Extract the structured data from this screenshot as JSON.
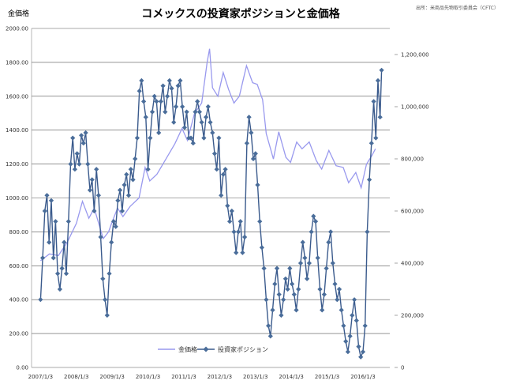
{
  "chart_data": {
    "type": "line",
    "title": "コメックスの投資家ポジションと金価格",
    "source_note": "出所：米商品先物取引委員会（CFTC）",
    "left_axis_label": "金価格",
    "left_axis": {
      "ylim": [
        0,
        2000
      ],
      "ticks": [
        "0.00",
        "200.00",
        "400.00",
        "600.00",
        "800.00",
        "1000.00",
        "1200.00",
        "1400.00",
        "1600.00",
        "1800.00",
        "2000.00"
      ]
    },
    "right_axis": {
      "ylim": [
        0,
        1300000
      ],
      "ticks": [
        "0",
        "200,000",
        "400,000",
        "600,000",
        "800,000",
        "1,000,000",
        "1,200,000"
      ]
    },
    "x_tick_labels": [
      "2007/1/3",
      "2008/1/3",
      "2009/1/3",
      "2010/1/3",
      "2011/1/3",
      "2012/1/3",
      "2013/1/3",
      "2014/1/3",
      "2015/1/3",
      "2016/1/3"
    ],
    "legend": {
      "gold_label": "金価格",
      "position_label": "投資家ポジション"
    },
    "colors": {
      "gold": "#9999ee",
      "position": "#3a5a8c",
      "marker": "#4a6d9a",
      "grid": "#555555"
    },
    "gold_series": {
      "name": "金価格",
      "axis": "left",
      "points": [
        [
          2007.0,
          630
        ],
        [
          2007.25,
          670
        ],
        [
          2007.5,
          660
        ],
        [
          2007.75,
          740
        ],
        [
          2008.0,
          850
        ],
        [
          2008.17,
          980
        ],
        [
          2008.35,
          880
        ],
        [
          2008.5,
          940
        ],
        [
          2008.75,
          760
        ],
        [
          2008.9,
          800
        ],
        [
          2009.0,
          860
        ],
        [
          2009.15,
          940
        ],
        [
          2009.3,
          890
        ],
        [
          2009.5,
          950
        ],
        [
          2009.75,
          1000
        ],
        [
          2009.92,
          1180
        ],
        [
          2010.05,
          1100
        ],
        [
          2010.25,
          1140
        ],
        [
          2010.5,
          1230
        ],
        [
          2010.75,
          1320
        ],
        [
          2010.95,
          1410
        ],
        [
          2011.1,
          1340
        ],
        [
          2011.3,
          1500
        ],
        [
          2011.5,
          1560
        ],
        [
          2011.65,
          1800
        ],
        [
          2011.72,
          1880
        ],
        [
          2011.8,
          1650
        ],
        [
          2011.95,
          1600
        ],
        [
          2012.1,
          1740
        ],
        [
          2012.25,
          1640
        ],
        [
          2012.4,
          1560
        ],
        [
          2012.55,
          1600
        ],
        [
          2012.75,
          1780
        ],
        [
          2012.92,
          1680
        ],
        [
          2013.05,
          1670
        ],
        [
          2013.2,
          1580
        ],
        [
          2013.3,
          1380
        ],
        [
          2013.5,
          1230
        ],
        [
          2013.65,
          1390
        ],
        [
          2013.85,
          1240
        ],
        [
          2013.98,
          1210
        ],
        [
          2014.15,
          1330
        ],
        [
          2014.3,
          1290
        ],
        [
          2014.5,
          1330
        ],
        [
          2014.7,
          1220
        ],
        [
          2014.85,
          1170
        ],
        [
          2015.05,
          1280
        ],
        [
          2015.25,
          1190
        ],
        [
          2015.45,
          1180
        ],
        [
          2015.6,
          1090
        ],
        [
          2015.8,
          1150
        ],
        [
          2015.95,
          1060
        ],
        [
          2016.1,
          1200
        ],
        [
          2016.25,
          1250
        ],
        [
          2016.35,
          1290
        ]
      ]
    },
    "position_series": {
      "name": "投資家ポジション",
      "axis": "right",
      "points": [
        [
          2007.0,
          260000
        ],
        [
          2007.06,
          420000
        ],
        [
          2007.12,
          600000
        ],
        [
          2007.18,
          660000
        ],
        [
          2007.24,
          480000
        ],
        [
          2007.3,
          640000
        ],
        [
          2007.36,
          420000
        ],
        [
          2007.42,
          560000
        ],
        [
          2007.48,
          360000
        ],
        [
          2007.54,
          300000
        ],
        [
          2007.6,
          380000
        ],
        [
          2007.66,
          480000
        ],
        [
          2007.72,
          360000
        ],
        [
          2007.78,
          560000
        ],
        [
          2007.84,
          780000
        ],
        [
          2007.9,
          880000
        ],
        [
          2007.96,
          760000
        ],
        [
          2008.02,
          820000
        ],
        [
          2008.08,
          780000
        ],
        [
          2008.14,
          890000
        ],
        [
          2008.2,
          860000
        ],
        [
          2008.26,
          900000
        ],
        [
          2008.32,
          780000
        ],
        [
          2008.38,
          680000
        ],
        [
          2008.44,
          720000
        ],
        [
          2008.5,
          600000
        ],
        [
          2008.56,
          760000
        ],
        [
          2008.62,
          660000
        ],
        [
          2008.68,
          500000
        ],
        [
          2008.74,
          340000
        ],
        [
          2008.8,
          260000
        ],
        [
          2008.86,
          200000
        ],
        [
          2008.92,
          360000
        ],
        [
          2008.98,
          480000
        ],
        [
          2009.04,
          560000
        ],
        [
          2009.1,
          540000
        ],
        [
          2009.16,
          640000
        ],
        [
          2009.22,
          680000
        ],
        [
          2009.28,
          600000
        ],
        [
          2009.34,
          700000
        ],
        [
          2009.4,
          740000
        ],
        [
          2009.46,
          660000
        ],
        [
          2009.52,
          760000
        ],
        [
          2009.58,
          720000
        ],
        [
          2009.64,
          800000
        ],
        [
          2009.7,
          880000
        ],
        [
          2009.76,
          1060000
        ],
        [
          2009.82,
          1100000
        ],
        [
          2009.88,
          1020000
        ],
        [
          2009.94,
          960000
        ],
        [
          2010.0,
          760000
        ],
        [
          2010.06,
          880000
        ],
        [
          2010.12,
          980000
        ],
        [
          2010.18,
          1040000
        ],
        [
          2010.24,
          1020000
        ],
        [
          2010.3,
          900000
        ],
        [
          2010.36,
          1020000
        ],
        [
          2010.42,
          1080000
        ],
        [
          2010.48,
          980000
        ],
        [
          2010.54,
          1040000
        ],
        [
          2010.6,
          1100000
        ],
        [
          2010.66,
          1070000
        ],
        [
          2010.72,
          940000
        ],
        [
          2010.78,
          1000000
        ],
        [
          2010.84,
          1080000
        ],
        [
          2010.9,
          1100000
        ],
        [
          2010.96,
          1000000
        ],
        [
          2011.02,
          920000
        ],
        [
          2011.08,
          980000
        ],
        [
          2011.14,
          880000
        ],
        [
          2011.2,
          880000
        ],
        [
          2011.26,
          860000
        ],
        [
          2011.32,
          980000
        ],
        [
          2011.38,
          1020000
        ],
        [
          2011.44,
          980000
        ],
        [
          2011.5,
          940000
        ],
        [
          2011.56,
          880000
        ],
        [
          2011.62,
          960000
        ],
        [
          2011.68,
          1000000
        ],
        [
          2011.74,
          940000
        ],
        [
          2011.8,
          900000
        ],
        [
          2011.86,
          820000
        ],
        [
          2011.92,
          760000
        ],
        [
          2011.98,
          880000
        ],
        [
          2012.04,
          660000
        ],
        [
          2012.1,
          740000
        ],
        [
          2012.16,
          760000
        ],
        [
          2012.22,
          620000
        ],
        [
          2012.28,
          560000
        ],
        [
          2012.34,
          600000
        ],
        [
          2012.4,
          520000
        ],
        [
          2012.46,
          440000
        ],
        [
          2012.52,
          520000
        ],
        [
          2012.58,
          560000
        ],
        [
          2012.64,
          440000
        ],
        [
          2012.7,
          500000
        ],
        [
          2012.76,
          860000
        ],
        [
          2012.82,
          960000
        ],
        [
          2012.88,
          900000
        ],
        [
          2012.94,
          800000
        ],
        [
          2013.0,
          820000
        ],
        [
          2013.06,
          700000
        ],
        [
          2013.12,
          560000
        ],
        [
          2013.18,
          460000
        ],
        [
          2013.24,
          380000
        ],
        [
          2013.3,
          260000
        ],
        [
          2013.36,
          160000
        ],
        [
          2013.42,
          120000
        ],
        [
          2013.48,
          220000
        ],
        [
          2013.54,
          320000
        ],
        [
          2013.6,
          380000
        ],
        [
          2013.66,
          280000
        ],
        [
          2013.72,
          200000
        ],
        [
          2013.78,
          260000
        ],
        [
          2013.84,
          340000
        ],
        [
          2013.9,
          300000
        ],
        [
          2013.96,
          380000
        ],
        [
          2014.02,
          320000
        ],
        [
          2014.08,
          280000
        ],
        [
          2014.14,
          220000
        ],
        [
          2014.2,
          300000
        ],
        [
          2014.26,
          400000
        ],
        [
          2014.32,
          480000
        ],
        [
          2014.38,
          420000
        ],
        [
          2014.44,
          340000
        ],
        [
          2014.5,
          400000
        ],
        [
          2014.56,
          520000
        ],
        [
          2014.62,
          580000
        ],
        [
          2014.68,
          560000
        ],
        [
          2014.74,
          420000
        ],
        [
          2014.8,
          300000
        ],
        [
          2014.86,
          220000
        ],
        [
          2014.92,
          280000
        ],
        [
          2014.98,
          380000
        ],
        [
          2015.04,
          480000
        ],
        [
          2015.1,
          520000
        ],
        [
          2015.16,
          400000
        ],
        [
          2015.22,
          320000
        ],
        [
          2015.28,
          260000
        ],
        [
          2015.34,
          300000
        ],
        [
          2015.4,
          220000
        ],
        [
          2015.46,
          160000
        ],
        [
          2015.52,
          100000
        ],
        [
          2015.58,
          60000
        ],
        [
          2015.64,
          120000
        ],
        [
          2015.7,
          200000
        ],
        [
          2015.76,
          260000
        ],
        [
          2015.82,
          180000
        ],
        [
          2015.88,
          80000
        ],
        [
          2015.94,
          40000
        ],
        [
          2016.0,
          60000
        ],
        [
          2016.06,
          160000
        ],
        [
          2016.12,
          520000
        ],
        [
          2016.18,
          720000
        ],
        [
          2016.24,
          860000
        ],
        [
          2016.3,
          1020000
        ],
        [
          2016.36,
          880000
        ],
        [
          2016.42,
          1100000
        ],
        [
          2016.48,
          960000
        ],
        [
          2016.52,
          1140000
        ]
      ]
    }
  }
}
